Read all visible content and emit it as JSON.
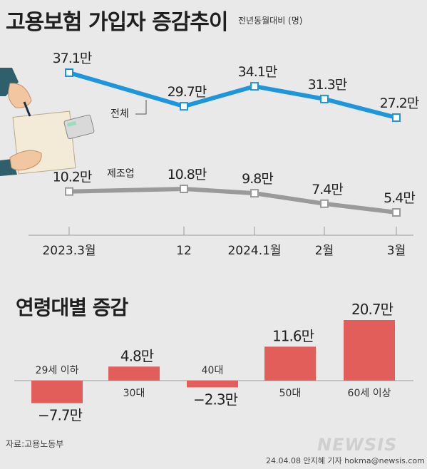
{
  "title": "고용보험 가입자 증감추이",
  "subtitle": "전년동월대비 (명)",
  "section2_title": "연령대별 증감",
  "source": "자료:고용노동부",
  "credit": "24.04.08 안지혜 기자 hokma@newsis.com",
  "logo": "NEWSIS",
  "chart_data": [
    {
      "type": "line",
      "categories": [
        "2023.3월",
        "12",
        "2024.1월",
        "2월",
        "3월"
      ],
      "series": [
        {
          "name": "전체",
          "color": "#1e96dc",
          "values": [
            37.1,
            29.7,
            34.1,
            31.3,
            27.2
          ],
          "labels": [
            "37.1만",
            "29.7만",
            "34.1만",
            "31.3만",
            "27.2만"
          ]
        },
        {
          "name": "제조업",
          "color": "#9a9a9a",
          "values": [
            10.2,
            10.8,
            9.8,
            7.4,
            5.4
          ],
          "labels": [
            "10.2만",
            "10.8만",
            "9.8만",
            "7.4만",
            "5.4만"
          ]
        }
      ]
    },
    {
      "type": "bar",
      "categories": [
        "29세 이하",
        "30대",
        "40대",
        "50대",
        "60세 이상"
      ],
      "values": [
        -7.7,
        4.8,
        -2.3,
        11.6,
        20.7
      ],
      "labels": [
        "−7.7만",
        "4.8만",
        "−2.3만",
        "11.6만",
        "20.7만"
      ],
      "color": "#e15e5a"
    }
  ]
}
